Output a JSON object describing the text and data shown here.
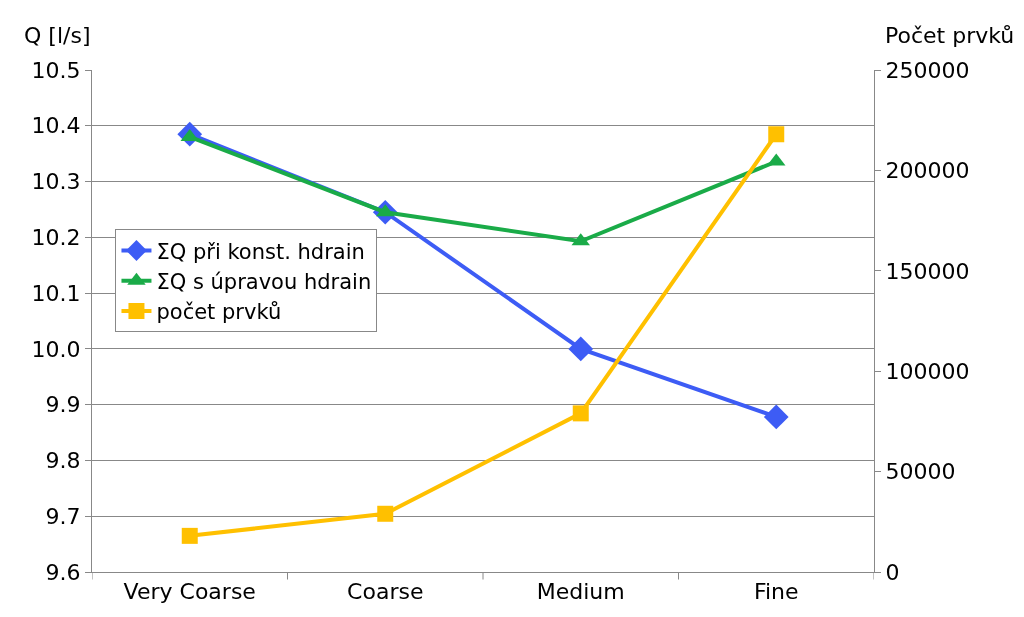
{
  "chart_data": {
    "type": "line",
    "categories": [
      "Very Coarse",
      "Coarse",
      "Medium",
      "Fine"
    ],
    "ylabel": "Q [l/s]",
    "y2label": "Počet prvků",
    "series": [
      {
        "name": "ΣQ při konst. hdrain",
        "color": "#3d5cf5",
        "marker": "diamond",
        "values": [
          10.385,
          10.245,
          10.0,
          9.878
        ]
      },
      {
        "name": "ΣQ s úpravou hdrain",
        "color": "#1aab48",
        "marker": "triangle",
        "values": [
          10.38,
          10.245,
          10.193,
          10.336
        ]
      },
      {
        "name": "počet prvků",
        "color": "#ffc000",
        "marker": "square",
        "axis": "y2",
        "values": [
          18000,
          29000,
          79000,
          218000
        ]
      }
    ],
    "ylim": [
      9.6,
      10.5
    ],
    "yticks": [
      9.6,
      9.7,
      9.8,
      9.9,
      {
        "value": 10,
        "label": "10.0"
      },
      10.1,
      10.2,
      10.3,
      10.4,
      10.5
    ],
    "y2lim": [
      0,
      250000
    ],
    "y2ticks": [
      0,
      50000,
      100000,
      150000,
      200000,
      250000
    ],
    "grid": "y",
    "legend": "center left",
    "line_style": "solid"
  }
}
